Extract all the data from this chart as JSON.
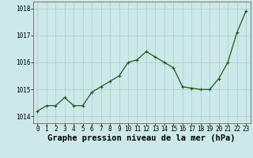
{
  "x": [
    0,
    1,
    2,
    3,
    4,
    5,
    6,
    7,
    8,
    9,
    10,
    11,
    12,
    13,
    14,
    15,
    16,
    17,
    18,
    19,
    20,
    21,
    22,
    23
  ],
  "y": [
    1014.2,
    1014.4,
    1014.4,
    1014.7,
    1014.4,
    1014.4,
    1014.9,
    1015.1,
    1015.3,
    1015.5,
    1016.0,
    1016.1,
    1016.4,
    1016.2,
    1016.0,
    1015.8,
    1015.1,
    1015.05,
    1015.0,
    1015.0,
    1015.4,
    1016.0,
    1017.1,
    1017.9
  ],
  "line_color": "#1a5c1a",
  "marker": "+",
  "marker_size": 3,
  "marker_linewidth": 0.8,
  "linewidth": 0.9,
  "bg_color": "#cce8e8",
  "grid_color": "#aacccc",
  "xlabel": "Graphe pression niveau de la mer (hPa)",
  "xlabel_fontsize": 7.5,
  "ytick_labels": [
    "1014",
    "1015",
    "1016",
    "1017",
    "1018"
  ],
  "ytick_values": [
    1014,
    1015,
    1016,
    1017,
    1018
  ],
  "xtick_values": [
    0,
    1,
    2,
    3,
    4,
    5,
    6,
    7,
    8,
    9,
    10,
    11,
    12,
    13,
    14,
    15,
    16,
    17,
    18,
    19,
    20,
    21,
    22,
    23
  ],
  "ylim": [
    1013.75,
    1018.25
  ],
  "xlim": [
    -0.5,
    23.5
  ],
  "tick_fontsize": 5.5,
  "spine_color": "#666666"
}
